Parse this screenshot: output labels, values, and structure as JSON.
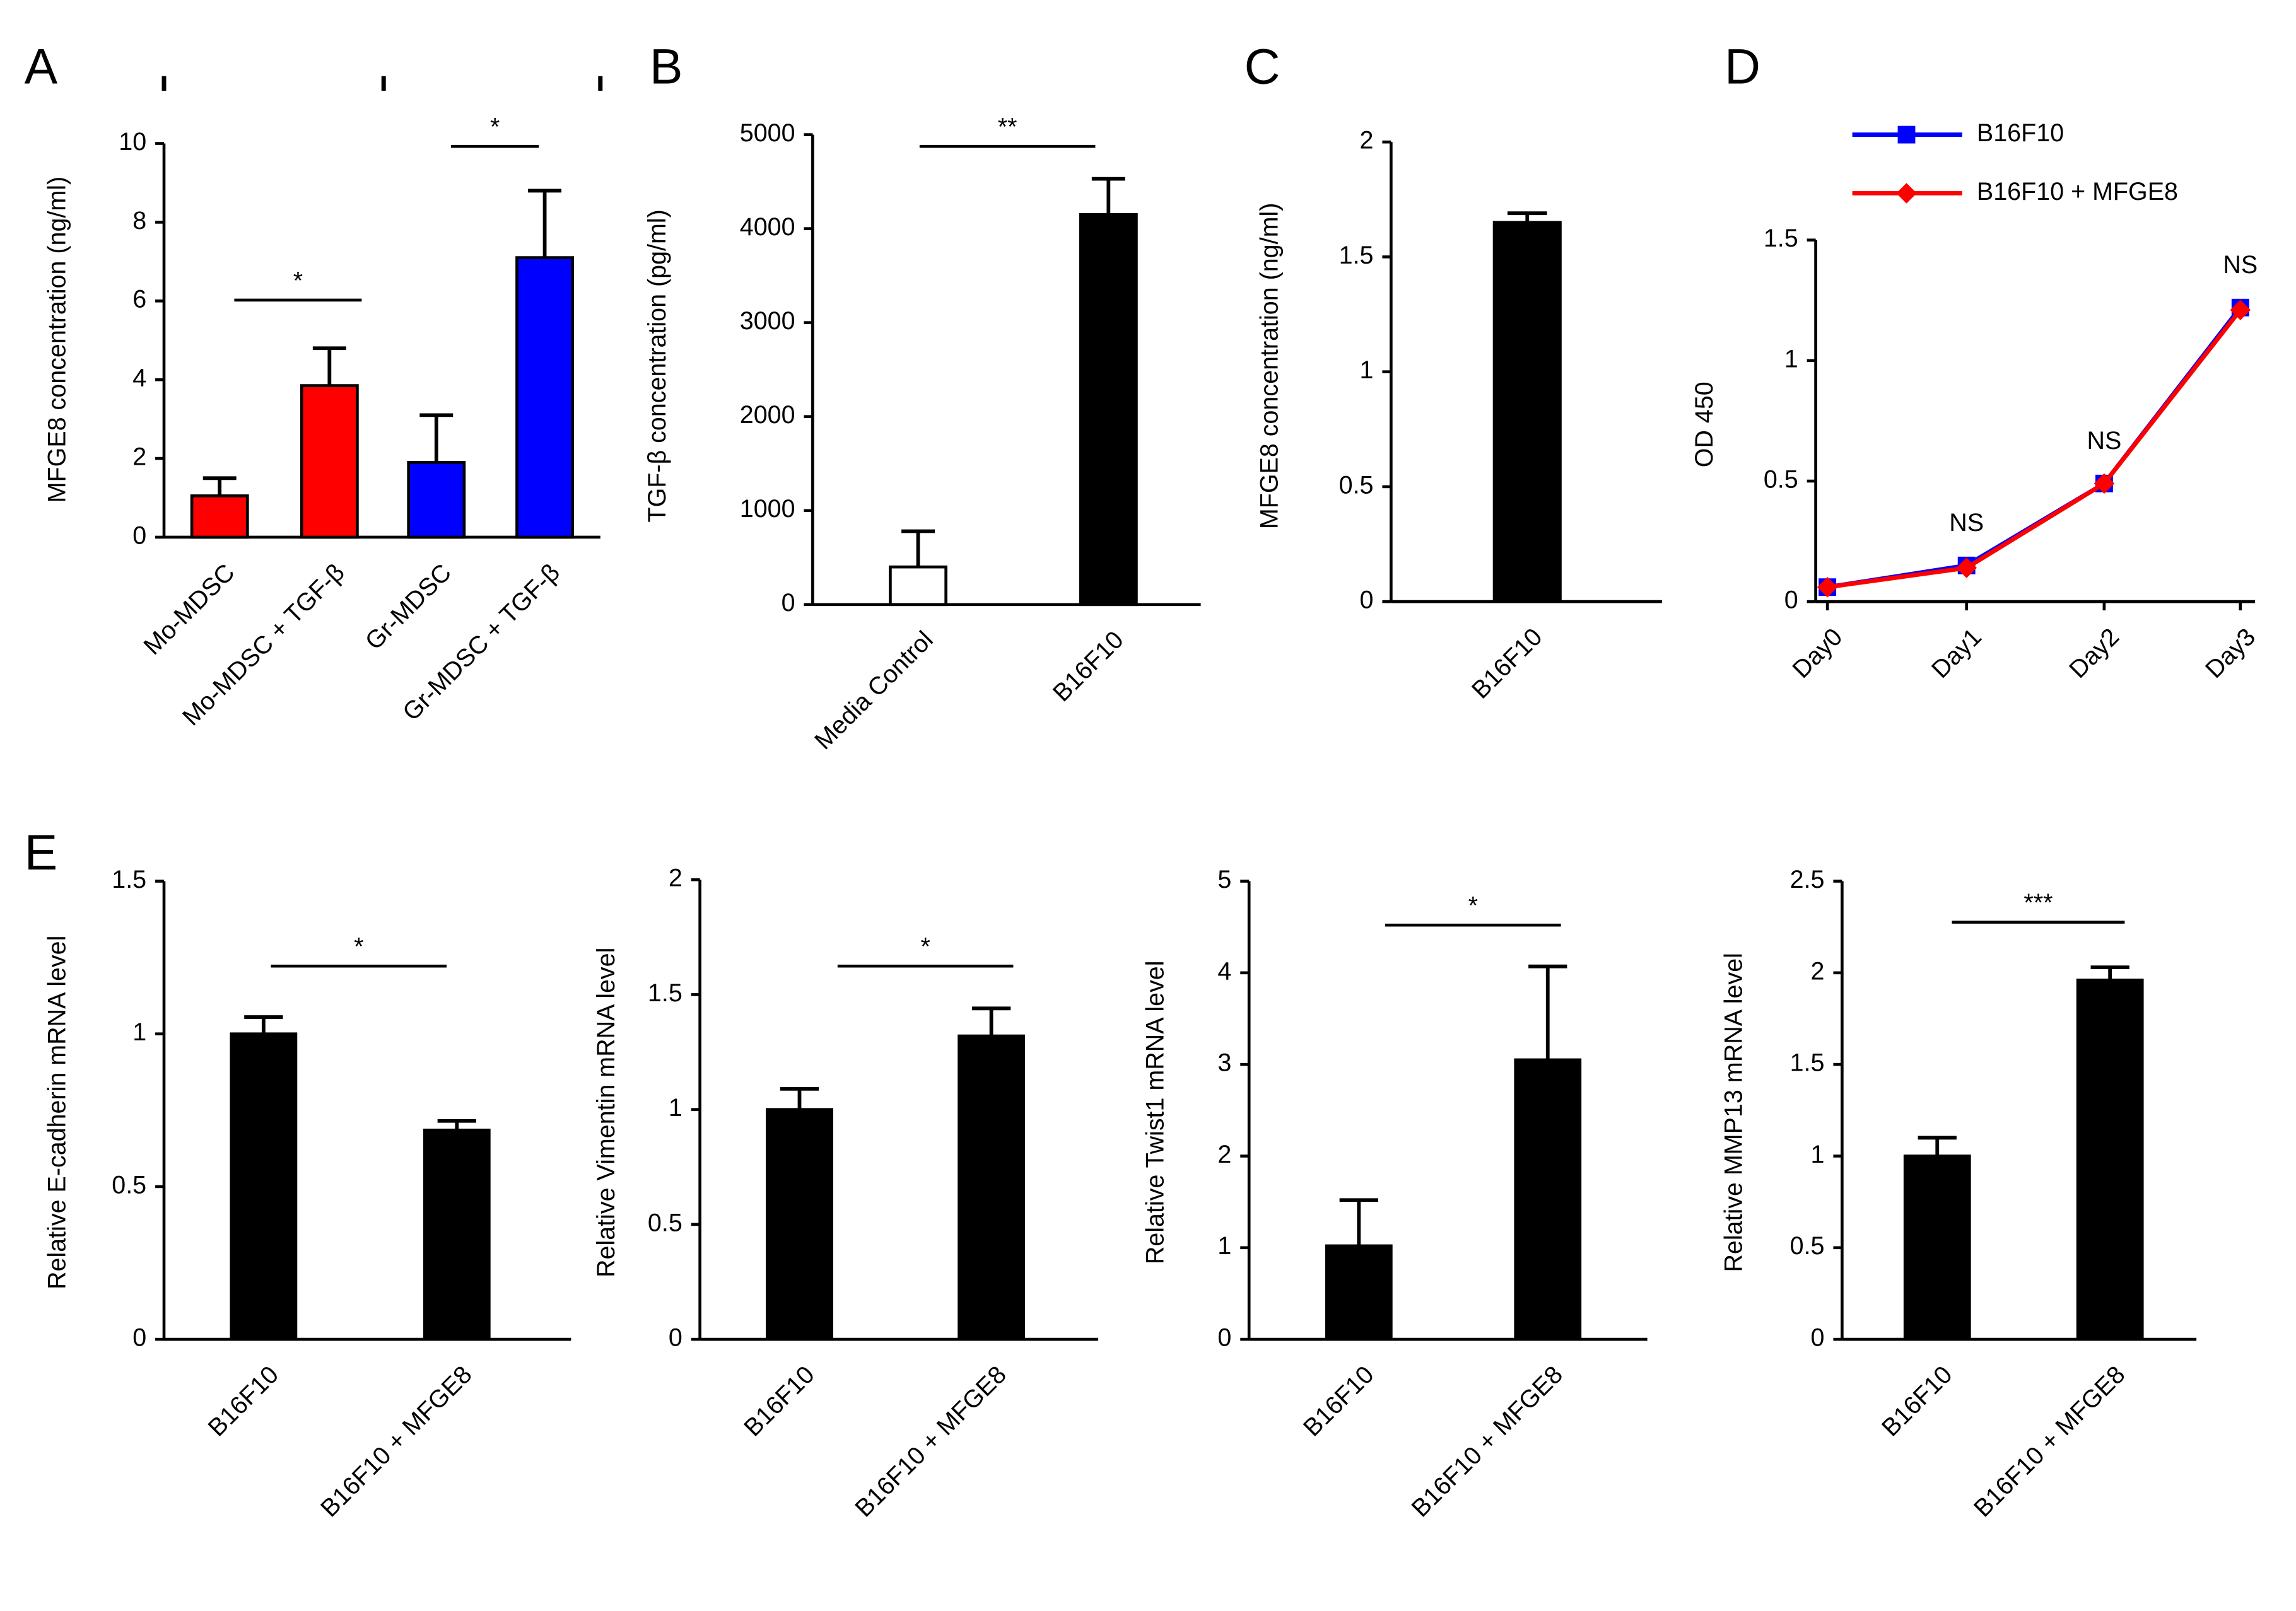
{
  "chart_data": [
    {
      "type": "bar",
      "panel": "A",
      "ylabel": "MFGE8 concentration (ng/ml)",
      "categories": [
        "Mo-MDSC",
        "Mo-MDSC + TGF-β",
        "Gr-MDSC",
        "Gr-MDSC + TGF-β"
      ],
      "values": [
        1.05,
        3.85,
        1.9,
        7.1
      ],
      "errors": [
        0.45,
        0.95,
        1.2,
        1.7
      ],
      "colors": [
        "#ff0000",
        "#ff0000",
        "#0000ff",
        "#0000ff"
      ],
      "ylim": [
        0,
        10
      ],
      "yticks": [
        0,
        2,
        4,
        6,
        8,
        10
      ],
      "annotations": [
        "*",
        "*"
      ]
    },
    {
      "type": "bar",
      "panel": "B",
      "ylabel": "TGF-β concentration (pg/ml)",
      "categories": [
        "Media Control",
        "B16F10"
      ],
      "values": [
        400,
        4150
      ],
      "errors": [
        380,
        380
      ],
      "colors": [
        "#ffffff",
        "#000000"
      ],
      "ylim": [
        0,
        5000
      ],
      "yticks": [
        0,
        1000,
        2000,
        3000,
        4000,
        5000
      ],
      "annotations": [
        "**"
      ]
    },
    {
      "type": "bar",
      "panel": "C",
      "ylabel": "MFGE8 concentration (ng/ml)",
      "categories": [
        "B16F10"
      ],
      "values": [
        1.65
      ],
      "errors": [
        0.04
      ],
      "colors": [
        "#000000"
      ],
      "ylim": [
        0,
        2
      ],
      "yticks": [
        0,
        0.5,
        1,
        1.5,
        2
      ],
      "annotations": []
    },
    {
      "type": "line",
      "panel": "D",
      "ylabel": "OD 450",
      "categories": [
        "Day0",
        "Day1",
        "Day2",
        "Day3"
      ],
      "series": [
        {
          "name": "B16F10",
          "color": "#0000ff",
          "marker": "square",
          "values": [
            0.06,
            0.15,
            0.49,
            1.22
          ]
        },
        {
          "name": "B16F10 + MFGE8",
          "color": "#ff0000",
          "marker": "diamond",
          "values": [
            0.06,
            0.14,
            0.49,
            1.21
          ]
        }
      ],
      "ylim": [
        0,
        1.5
      ],
      "yticks": [
        0,
        0.5,
        1,
        1.5
      ],
      "annotations": [
        "NS",
        "NS",
        "NS"
      ]
    },
    {
      "type": "bar",
      "panel": "E",
      "ylabel": "Relative E-cadherin mRNA level",
      "categories": [
        "B16F10",
        "B16F10 + MFGE8"
      ],
      "values": [
        1.0,
        0.685
      ],
      "errors": [
        0.055,
        0.03
      ],
      "colors": [
        "#000000",
        "#000000"
      ],
      "ylim": [
        0,
        1.5
      ],
      "yticks": [
        0,
        0.5,
        1,
        1.5
      ],
      "annotations": [
        "*"
      ]
    },
    {
      "type": "bar",
      "ylabel": "Relative Vimentin mRNA level",
      "categories": [
        "B16F10",
        "B16F10 + MFGE8"
      ],
      "values": [
        1.0,
        1.32
      ],
      "errors": [
        0.09,
        0.12
      ],
      "colors": [
        "#000000",
        "#000000"
      ],
      "ylim": [
        0,
        2
      ],
      "yticks": [
        0,
        0.5,
        1,
        1.5,
        2
      ],
      "annotations": [
        "*"
      ]
    },
    {
      "type": "bar",
      "ylabel": "Relative Twist1 mRNA level",
      "categories": [
        "B16F10",
        "B16F10 + MFGE8"
      ],
      "values": [
        1.02,
        3.05
      ],
      "errors": [
        0.5,
        1.02
      ],
      "colors": [
        "#000000",
        "#000000"
      ],
      "ylim": [
        0,
        5
      ],
      "yticks": [
        0,
        1,
        2,
        3,
        4,
        5
      ],
      "annotations": [
        "*"
      ]
    },
    {
      "type": "bar",
      "ylabel": "Relative MMP13 mRNA level",
      "categories": [
        "B16F10",
        "B16F10 + MFGE8"
      ],
      "values": [
        1.0,
        1.96
      ],
      "errors": [
        0.1,
        0.07
      ],
      "colors": [
        "#000000",
        "#000000"
      ],
      "ylim": [
        0,
        2.5
      ],
      "yticks": [
        0,
        0.5,
        1,
        1.5,
        2,
        2.5
      ],
      "annotations": [
        "***"
      ]
    }
  ]
}
